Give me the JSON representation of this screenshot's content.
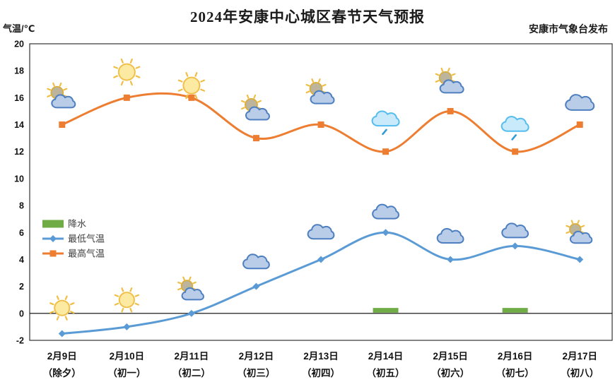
{
  "header": {
    "title": "2024年安康中心城区春节天气预报",
    "publisher": "安康市气象台发布",
    "y_axis_unit": "气温/℃"
  },
  "chart_data": {
    "type": "line",
    "title": "2024年安康中心城区春节天气预报",
    "xlabel": "",
    "ylabel": "气温/℃",
    "ylim": [
      -2,
      20
    ],
    "y_tick_step": 2,
    "grid": false,
    "legend_position": "middle-left",
    "legend": [
      "降水",
      "最低气温",
      "最高气温"
    ],
    "categories": [
      "2月9日",
      "2月10日",
      "2月11日",
      "2月12日",
      "2月13日",
      "2月14日",
      "2月15日",
      "2月16日",
      "2月17日"
    ],
    "category_sublabels": [
      "（除夕）",
      "（初一）",
      "（初二）",
      "（初三）",
      "（初四）",
      "（初五）",
      "（初六）",
      "（初七）",
      "（初八）"
    ],
    "series": [
      {
        "name": "最高气温",
        "type": "line",
        "marker": "square",
        "color": "#ED7D31",
        "values": [
          14,
          16,
          16,
          13,
          14,
          12,
          15,
          12,
          14
        ]
      },
      {
        "name": "最低气温",
        "type": "line",
        "marker": "diamond",
        "color": "#5B9BD5",
        "values": [
          -1.5,
          -1,
          0,
          2,
          4,
          6,
          4,
          5,
          4
        ]
      },
      {
        "name": "降水",
        "type": "bar",
        "color": "#6FAC46",
        "values": [
          0,
          0,
          0,
          0,
          0,
          0.35,
          0,
          0.35,
          0
        ]
      }
    ],
    "day_icons": [
      "suncloud",
      "sun",
      "sun",
      "suncloud",
      "suncloud",
      "rain",
      "suncloud",
      "rain",
      "cloud"
    ],
    "day_icon_y": [
      15.9,
      17.9,
      16.9,
      15.0,
      16.2,
      14.3,
      17.0,
      13.9,
      15.6
    ],
    "night_icons": [
      "sun",
      "sun",
      "suncloud",
      "cloud",
      "cloud",
      "cloud",
      "cloud",
      "cloud",
      "suncloud"
    ],
    "night_icon_y": [
      0.4,
      1.0,
      1.6,
      3.8,
      6.0,
      7.5,
      5.7,
      6.1,
      5.8
    ],
    "icon_colors": {
      "sun_fill": "#FCE9A2",
      "sun_stroke": "#F0C04A",
      "sun_ray": "#F0BE45",
      "cloud_fill": "#B9CDE9",
      "cloud_stroke": "#4E7FC0",
      "rain_cloud_fill": "#C9EAFB",
      "rain_cloud_stroke": "#55BDEE",
      "rain_drop": "#2F9BD8",
      "suncloud_disc": "#BDB49C",
      "suncloud_disc_stroke": "#D9AE3C"
    },
    "axis_color": "#333333",
    "text_color": "#111111"
  }
}
